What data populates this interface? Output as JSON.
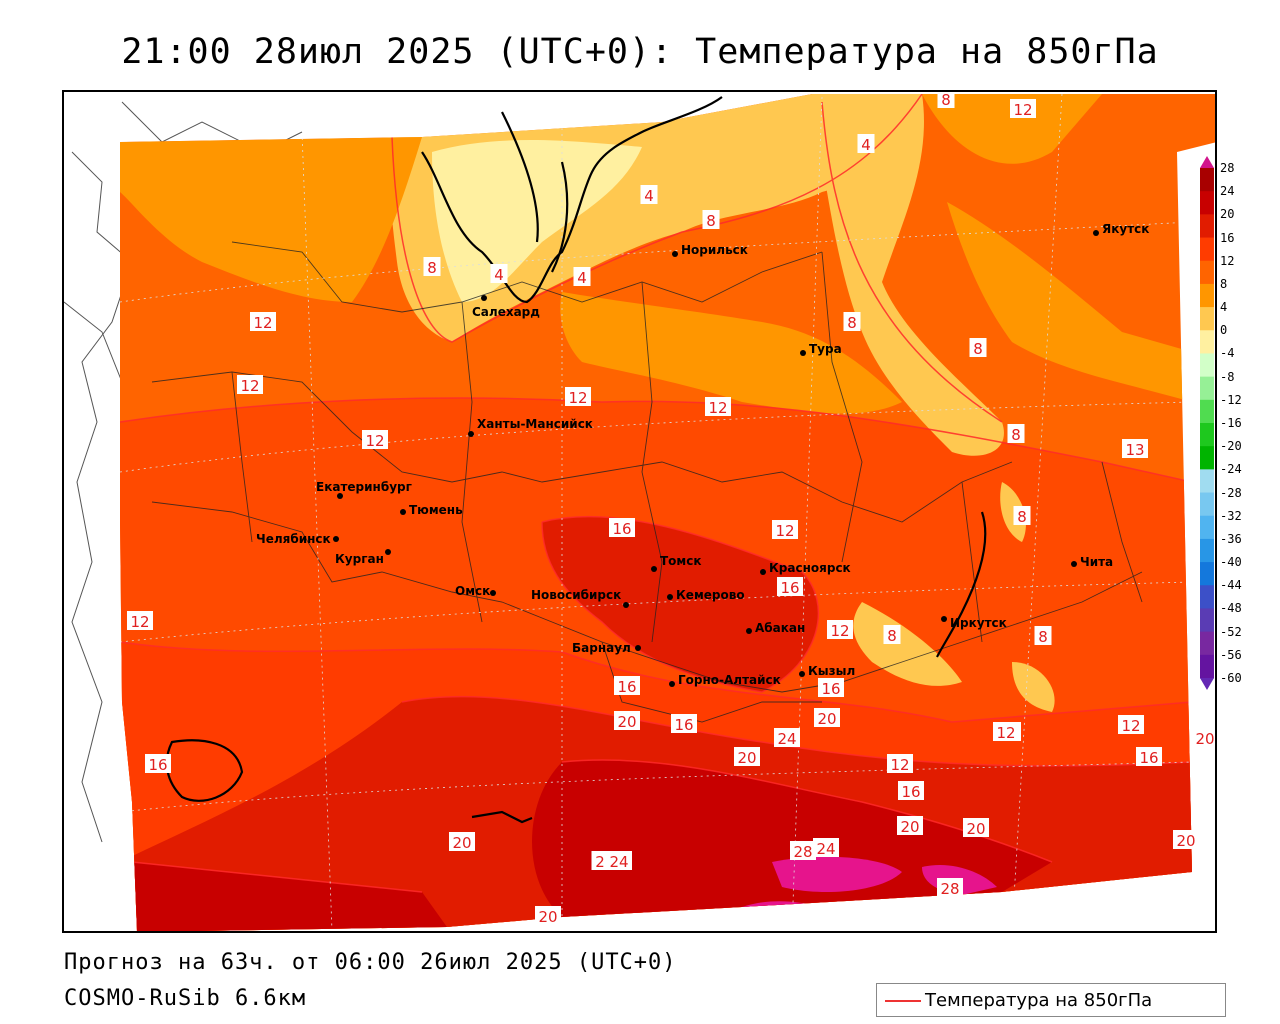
{
  "title": "21:00 28июл 2025 (UTC+0): Температура на 850гПа",
  "footer": {
    "forecast": "Прогноз на 63ч. от 06:00 26июл 2025 (UTC+0)",
    "model": "COSMO-RuSib 6.6км"
  },
  "legend": {
    "label": "Температура на 850гПа",
    "line_color": "#ee3333"
  },
  "colorbar": {
    "labels": [
      "28",
      "24",
      "20",
      "16",
      "12",
      "8",
      "4",
      "0",
      "-4",
      "-8",
      "-12",
      "-16",
      "-20",
      "-24",
      "-28",
      "-32",
      "-36",
      "-40",
      "-44",
      "-48",
      "-52",
      "-56",
      "-60"
    ],
    "colors": [
      "#a80000",
      "#c80000",
      "#e11c00",
      "#ff3c00",
      "#ff6400",
      "#ff9600",
      "#ffc850",
      "#fff0a0",
      "#d2ffc8",
      "#96f096",
      "#50dc50",
      "#1ec81e",
      "#00b400",
      "#a0dcf0",
      "#78c8f0",
      "#50b4f0",
      "#2896e6",
      "#1478dc",
      "#3c50c8",
      "#5a3cb4",
      "#7828a0",
      "#6414a0",
      "#460a8c"
    ]
  },
  "cities": [
    {
      "name": "Салехард"
    },
    {
      "name": "Норильск"
    },
    {
      "name": "Якутск"
    },
    {
      "name": "Тура"
    },
    {
      "name": "Ханты-Мансийск"
    },
    {
      "name": "Екатеринбург"
    },
    {
      "name": "Тюмень"
    },
    {
      "name": "Челябинск"
    },
    {
      "name": "Курган"
    },
    {
      "name": "Омск"
    },
    {
      "name": "Новосибирск"
    },
    {
      "name": "Томск"
    },
    {
      "name": "Кемерово"
    },
    {
      "name": "Красноярск"
    },
    {
      "name": "Абакан"
    },
    {
      "name": "Барнаул"
    },
    {
      "name": "Горно-Алтайск"
    },
    {
      "name": "Кызыл"
    },
    {
      "name": "Иркутск"
    },
    {
      "name": "Чита"
    }
  ],
  "isotherm_labels": [
    "8",
    "12",
    "4",
    "4",
    "8",
    "4",
    "12",
    "8",
    "4",
    "8",
    "12",
    "12",
    "12",
    "12",
    "8",
    "8",
    "13",
    "16",
    "12",
    "8",
    "16",
    "8",
    "12",
    "12",
    "8",
    "16",
    "20",
    "16",
    "24",
    "20",
    "12",
    "16",
    "20",
    "20",
    "24",
    "20",
    "20",
    "28",
    "24",
    "16",
    "12",
    "16",
    "20",
    "20",
    "20",
    "12",
    "12",
    "16",
    "20",
    "2",
    "24",
    "28"
  ]
}
